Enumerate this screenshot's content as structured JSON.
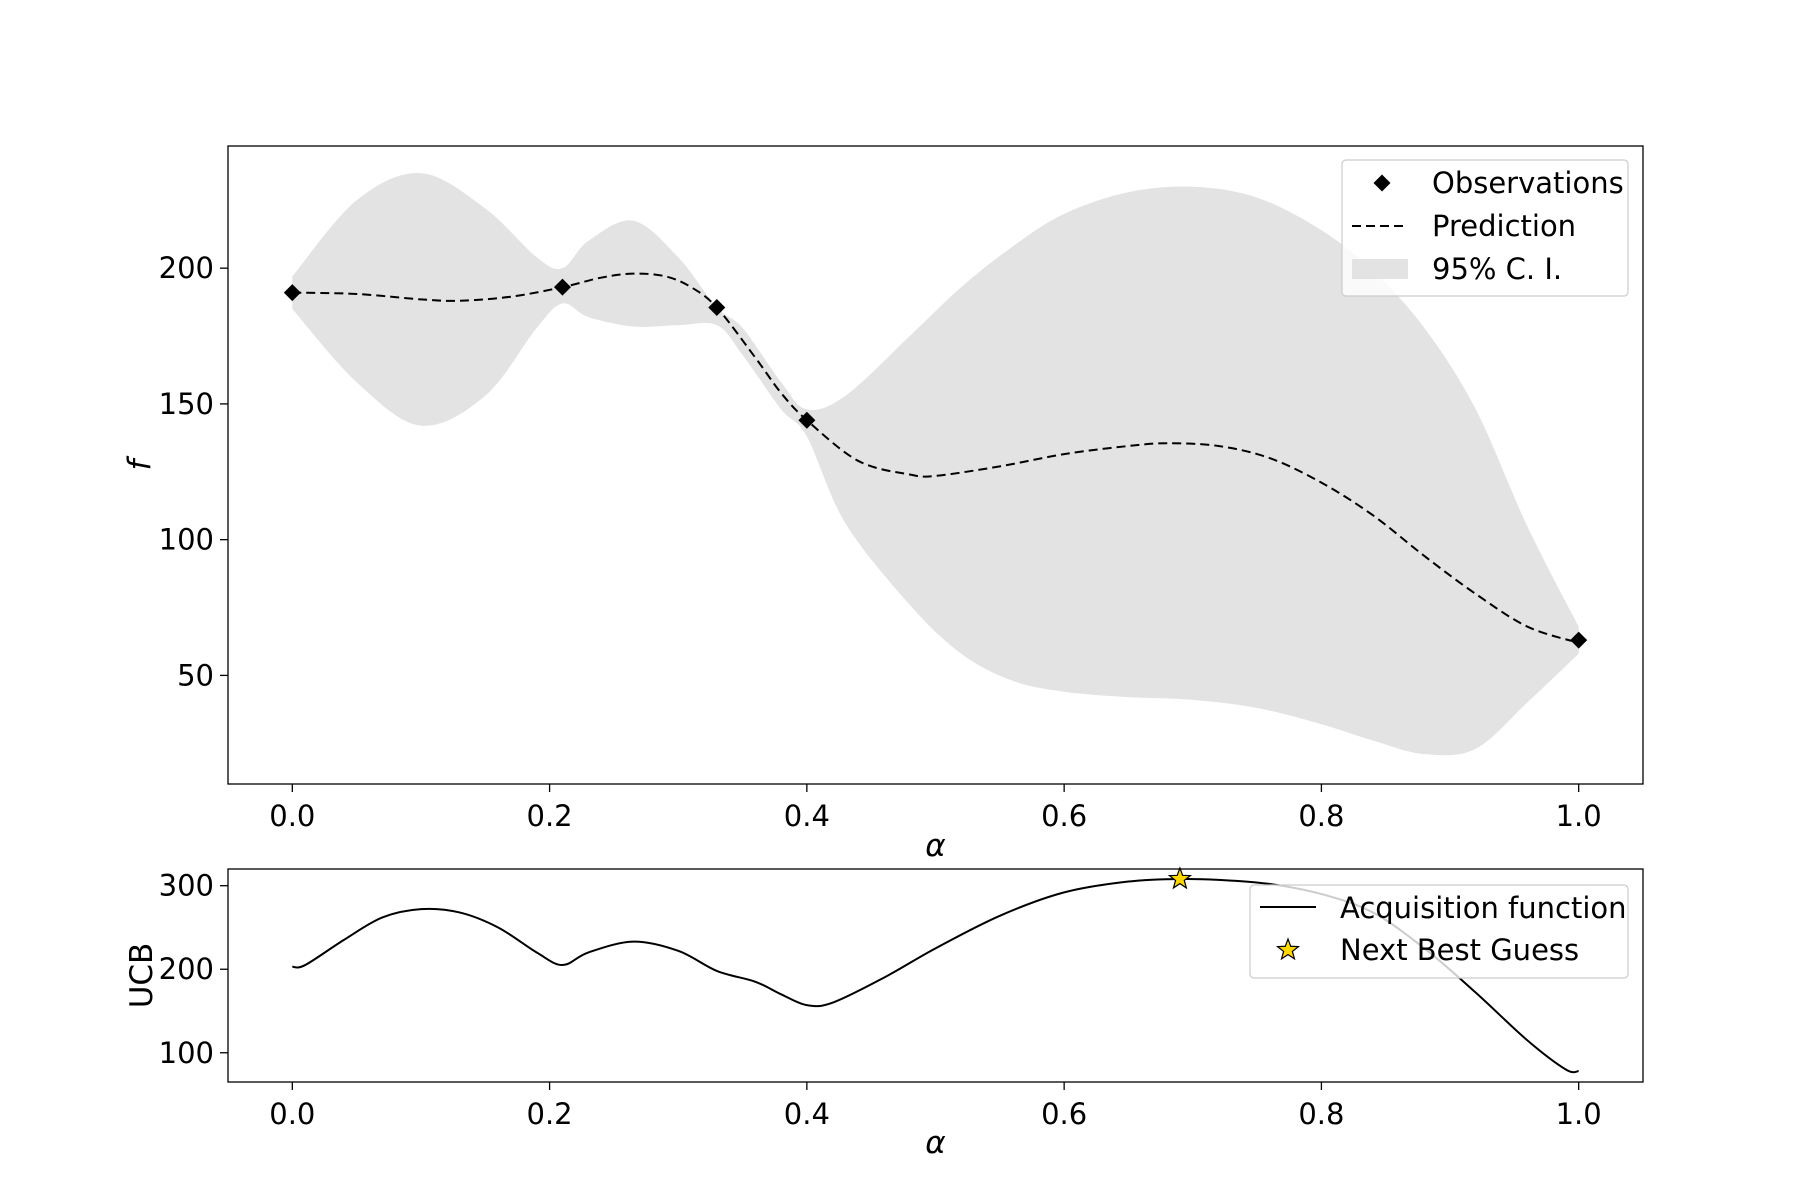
{
  "chart_data": [
    {
      "type": "line",
      "xlabel": "α",
      "ylabel": "f",
      "xlim": [
        -0.05,
        1.05
      ],
      "ylim": [
        10,
        245
      ],
      "xticks": [
        0.0,
        0.2,
        0.4,
        0.6,
        0.8,
        1.0
      ],
      "xtick_labels": [
        "0.0",
        "0.2",
        "0.4",
        "0.6",
        "0.8",
        "1.0"
      ],
      "yticks": [
        50,
        100,
        150,
        200
      ],
      "ytick_labels": [
        "50",
        "100",
        "150",
        "200"
      ],
      "grid": false,
      "legend_position": "top-right",
      "observations": {
        "name": "Observations",
        "x": [
          0.0,
          0.21,
          0.33,
          0.4,
          1.0
        ],
        "y": [
          191,
          193,
          185.5,
          144,
          63
        ]
      },
      "prediction": {
        "name": "Prediction",
        "x": [
          0.0,
          0.05,
          0.1,
          0.13,
          0.17,
          0.21,
          0.24,
          0.265,
          0.29,
          0.31,
          0.33,
          0.36,
          0.38,
          0.4,
          0.44,
          0.48,
          0.5,
          0.55,
          0.6,
          0.65,
          0.68,
          0.72,
          0.76,
          0.8,
          0.84,
          0.88,
          0.92,
          0.96,
          1.0
        ],
        "y": [
          191,
          190.5,
          188.5,
          188,
          189.5,
          193,
          196.5,
          198,
          197,
          193,
          185.5,
          167,
          154,
          144,
          129,
          124,
          123.5,
          127,
          131.5,
          134.5,
          135.5,
          134.5,
          130,
          121,
          109,
          94,
          80,
          68,
          62
        ]
      },
      "confidence_interval": {
        "name": "95% C. I.",
        "x": [
          0.0,
          0.05,
          0.1,
          0.15,
          0.19,
          0.21,
          0.23,
          0.265,
          0.3,
          0.33,
          0.35,
          0.38,
          0.4,
          0.43,
          0.48,
          0.52,
          0.56,
          0.6,
          0.65,
          0.7,
          0.75,
          0.8,
          0.84,
          0.88,
          0.92,
          0.96,
          1.0
        ],
        "upper": [
          197,
          225,
          235,
          222,
          204,
          200,
          210,
          217.5,
          204,
          185.5,
          178,
          158,
          148,
          153,
          175,
          193,
          208,
          220,
          228,
          230,
          226,
          214,
          199,
          178,
          148,
          105,
          68
        ],
        "lower": [
          185,
          158,
          142,
          153,
          178,
          187,
          182,
          178.5,
          179,
          179,
          168,
          148,
          138,
          106,
          76,
          58,
          48,
          44,
          42,
          41,
          38,
          32,
          26,
          21,
          23,
          40,
          58
        ]
      }
    },
    {
      "type": "line",
      "xlabel": "α",
      "ylabel": "UCB",
      "xlim": [
        -0.05,
        1.05
      ],
      "ylim": [
        65,
        320
      ],
      "xticks": [
        0.0,
        0.2,
        0.4,
        0.6,
        0.8,
        1.0
      ],
      "xtick_labels": [
        "0.0",
        "0.2",
        "0.4",
        "0.6",
        "0.8",
        "1.0"
      ],
      "yticks": [
        100,
        200,
        300
      ],
      "ytick_labels": [
        "100",
        "200",
        "300"
      ],
      "grid": false,
      "legend_position": "top-right",
      "acquisition": {
        "name": "Acquisition function",
        "x": [
          0.0,
          0.01,
          0.04,
          0.07,
          0.1,
          0.13,
          0.16,
          0.19,
          0.21,
          0.23,
          0.265,
          0.3,
          0.33,
          0.36,
          0.38,
          0.4,
          0.42,
          0.46,
          0.5,
          0.55,
          0.6,
          0.65,
          0.69,
          0.72,
          0.76,
          0.8,
          0.84,
          0.88,
          0.92,
          0.96,
          0.99,
          1.0
        ],
        "y": [
          203,
          205,
          235,
          262,
          272,
          268,
          250,
          220,
          205,
          220,
          233,
          222,
          198,
          185,
          170,
          157,
          160,
          190,
          225,
          264,
          292,
          305,
          308,
          307,
          302,
          290,
          268,
          225,
          172,
          115,
          80,
          78
        ]
      },
      "next_best_guess": {
        "name": "Next Best Guess",
        "x": 0.69,
        "y": 308,
        "color": "#FFD700"
      }
    }
  ],
  "colors": {
    "ci_fill": "#e3e3e3",
    "line": "#000000",
    "star_fill": "#FFD700"
  }
}
